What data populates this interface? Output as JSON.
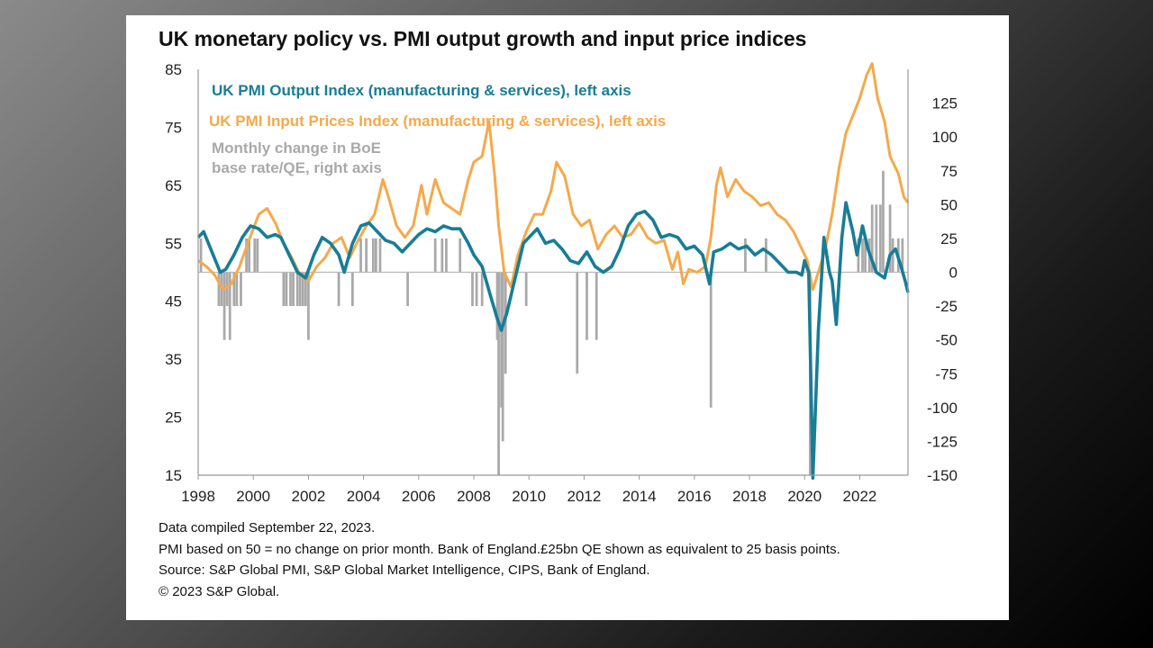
{
  "title": "UK monetary policy vs. PMI output growth and input price indices",
  "notes": [
    "Data compiled September 22, 2023.",
    "PMI based on 50 = no change on prior month. Bank of England.£25bn QE shown as equivalent to 25 basis points.",
    "Source: S&P Global PMI, S&P Global Market Intelligence, CIPS, Bank of England.",
    "© 2023 S&P Global."
  ],
  "colors": {
    "output": "#187d96",
    "input": "#f5a94a",
    "boe": "#a9a9a9",
    "zero_line": "#b8b8b8",
    "axis": "#999999"
  },
  "chart_data": {
    "type": "line",
    "x_range": [
      1998,
      2023.75
    ],
    "x_ticks": [
      "1998",
      "2000",
      "2002",
      "2004",
      "2006",
      "2008",
      "2010",
      "2012",
      "2014",
      "2016",
      "2018",
      "2020",
      "2022"
    ],
    "left_axis": {
      "range": [
        15,
        85
      ],
      "ticks": [
        "85",
        "75",
        "65",
        "55",
        "45",
        "35",
        "25",
        "15"
      ]
    },
    "right_axis": {
      "range": [
        -150,
        150
      ],
      "ticks": [
        "125",
        "100",
        "75",
        "50",
        "25",
        "0",
        "-25",
        "-50",
        "-75",
        "-100",
        "-125",
        "-150"
      ]
    },
    "series": [
      {
        "name": "UK PMI Output Index (manufacturing & services), left axis",
        "axis": "left",
        "kind": "line",
        "points": [
          [
            1998.0,
            56
          ],
          [
            1998.2,
            57
          ],
          [
            1998.5,
            53.5
          ],
          [
            1998.8,
            50
          ],
          [
            1999.0,
            50.5
          ],
          [
            1999.3,
            53
          ],
          [
            1999.6,
            56
          ],
          [
            1999.9,
            58
          ],
          [
            2000.2,
            57.5
          ],
          [
            2000.5,
            56
          ],
          [
            2000.8,
            56.5
          ],
          [
            2001.0,
            56
          ],
          [
            2001.3,
            53
          ],
          [
            2001.6,
            50
          ],
          [
            2001.9,
            49
          ],
          [
            2002.2,
            53
          ],
          [
            2002.5,
            56
          ],
          [
            2002.8,
            55
          ],
          [
            2003.1,
            53
          ],
          [
            2003.3,
            50
          ],
          [
            2003.6,
            55
          ],
          [
            2003.9,
            58
          ],
          [
            2004.2,
            58.5
          ],
          [
            2004.5,
            57
          ],
          [
            2004.8,
            55.5
          ],
          [
            2005.1,
            55
          ],
          [
            2005.4,
            53.5
          ],
          [
            2005.7,
            55
          ],
          [
            2006.0,
            56.5
          ],
          [
            2006.3,
            57.5
          ],
          [
            2006.6,
            57
          ],
          [
            2006.9,
            58
          ],
          [
            2007.2,
            57.5
          ],
          [
            2007.5,
            57.5
          ],
          [
            2007.8,
            55
          ],
          [
            2008.0,
            53
          ],
          [
            2008.3,
            51
          ],
          [
            2008.6,
            46
          ],
          [
            2008.85,
            42
          ],
          [
            2009.0,
            40
          ],
          [
            2009.2,
            43
          ],
          [
            2009.5,
            49
          ],
          [
            2009.8,
            55
          ],
          [
            2010.0,
            56
          ],
          [
            2010.3,
            57.5
          ],
          [
            2010.6,
            55
          ],
          [
            2010.9,
            55.5
          ],
          [
            2011.2,
            54
          ],
          [
            2011.5,
            52
          ],
          [
            2011.8,
            51.5
          ],
          [
            2012.1,
            53.5
          ],
          [
            2012.4,
            51
          ],
          [
            2012.7,
            50
          ],
          [
            2013.0,
            51
          ],
          [
            2013.3,
            54
          ],
          [
            2013.6,
            58
          ],
          [
            2013.9,
            60
          ],
          [
            2014.2,
            60.5
          ],
          [
            2014.5,
            59
          ],
          [
            2014.8,
            56
          ],
          [
            2015.1,
            56.5
          ],
          [
            2015.4,
            56
          ],
          [
            2015.7,
            54
          ],
          [
            2016.0,
            54.5
          ],
          [
            2016.3,
            53
          ],
          [
            2016.55,
            48
          ],
          [
            2016.7,
            53.5
          ],
          [
            2017.0,
            54
          ],
          [
            2017.3,
            55
          ],
          [
            2017.6,
            54
          ],
          [
            2017.9,
            54.5
          ],
          [
            2018.2,
            53
          ],
          [
            2018.5,
            54
          ],
          [
            2018.8,
            53
          ],
          [
            2019.1,
            51.5
          ],
          [
            2019.4,
            50
          ],
          [
            2019.7,
            50
          ],
          [
            2019.9,
            49.5
          ],
          [
            2020.0,
            52
          ],
          [
            2020.15,
            50
          ],
          [
            2020.3,
            14.5
          ],
          [
            2020.5,
            40
          ],
          [
            2020.7,
            56
          ],
          [
            2020.9,
            50
          ],
          [
            2021.0,
            48.5
          ],
          [
            2021.15,
            41
          ],
          [
            2021.35,
            56
          ],
          [
            2021.5,
            62
          ],
          [
            2021.75,
            57
          ],
          [
            2021.9,
            53
          ],
          [
            2022.1,
            58
          ],
          [
            2022.3,
            54
          ],
          [
            2022.6,
            50
          ],
          [
            2022.9,
            49
          ],
          [
            2023.1,
            53
          ],
          [
            2023.3,
            54
          ],
          [
            2023.5,
            51
          ],
          [
            2023.65,
            48.5
          ],
          [
            2023.75,
            46.5
          ]
        ]
      },
      {
        "name": "UK PMI Input Prices Index (manufacturing & services), left axis",
        "axis": "left",
        "kind": "line",
        "points": [
          [
            1998.0,
            52
          ],
          [
            1998.3,
            51
          ],
          [
            1998.6,
            49.5
          ],
          [
            1998.9,
            47
          ],
          [
            1999.2,
            48
          ],
          [
            1999.5,
            51
          ],
          [
            1999.8,
            55
          ],
          [
            2000.2,
            60
          ],
          [
            2000.5,
            61
          ],
          [
            2000.8,
            58.5
          ],
          [
            2001.1,
            55
          ],
          [
            2001.4,
            52.5
          ],
          [
            2001.7,
            49.5
          ],
          [
            2002.0,
            48.5
          ],
          [
            2002.3,
            51
          ],
          [
            2002.6,
            52.5
          ],
          [
            2002.9,
            55
          ],
          [
            2003.2,
            56
          ],
          [
            2003.5,
            52.5
          ],
          [
            2003.8,
            55.5
          ],
          [
            2004.1,
            58
          ],
          [
            2004.4,
            60
          ],
          [
            2004.7,
            66
          ],
          [
            2004.9,
            63
          ],
          [
            2005.2,
            58
          ],
          [
            2005.5,
            56
          ],
          [
            2005.8,
            58
          ],
          [
            2006.1,
            65
          ],
          [
            2006.3,
            60
          ],
          [
            2006.6,
            66
          ],
          [
            2006.9,
            62
          ],
          [
            2007.2,
            61
          ],
          [
            2007.5,
            60
          ],
          [
            2007.8,
            66
          ],
          [
            2008.0,
            69
          ],
          [
            2008.3,
            70
          ],
          [
            2008.55,
            76
          ],
          [
            2008.75,
            67
          ],
          [
            2008.9,
            58
          ],
          [
            2009.1,
            50
          ],
          [
            2009.35,
            47.5
          ],
          [
            2009.6,
            53
          ],
          [
            2009.9,
            57
          ],
          [
            2010.2,
            60
          ],
          [
            2010.5,
            60
          ],
          [
            2010.8,
            64
          ],
          [
            2011.0,
            69
          ],
          [
            2011.3,
            66.5
          ],
          [
            2011.6,
            60
          ],
          [
            2011.9,
            58
          ],
          [
            2012.2,
            59
          ],
          [
            2012.5,
            54
          ],
          [
            2012.8,
            56.5
          ],
          [
            2013.1,
            58
          ],
          [
            2013.4,
            56
          ],
          [
            2013.7,
            56.5
          ],
          [
            2014.0,
            58.5
          ],
          [
            2014.3,
            56
          ],
          [
            2014.6,
            55
          ],
          [
            2014.9,
            55.5
          ],
          [
            2015.2,
            50.5
          ],
          [
            2015.4,
            53.5
          ],
          [
            2015.6,
            48
          ],
          [
            2015.8,
            50.5
          ],
          [
            2016.1,
            50
          ],
          [
            2016.4,
            51
          ],
          [
            2016.6,
            56
          ],
          [
            2016.8,
            65
          ],
          [
            2016.95,
            68
          ],
          [
            2017.2,
            63
          ],
          [
            2017.5,
            66
          ],
          [
            2017.8,
            64
          ],
          [
            2018.1,
            63
          ],
          [
            2018.4,
            61.5
          ],
          [
            2018.7,
            62
          ],
          [
            2019.0,
            60
          ],
          [
            2019.3,
            59
          ],
          [
            2019.6,
            57
          ],
          [
            2019.9,
            54
          ],
          [
            2020.1,
            52
          ],
          [
            2020.3,
            47
          ],
          [
            2020.5,
            50
          ],
          [
            2020.75,
            54
          ],
          [
            2021.0,
            60
          ],
          [
            2021.25,
            68
          ],
          [
            2021.5,
            74
          ],
          [
            2021.75,
            77
          ],
          [
            2022.0,
            80
          ],
          [
            2022.25,
            84
          ],
          [
            2022.45,
            86
          ],
          [
            2022.65,
            80
          ],
          [
            2022.9,
            76
          ],
          [
            2023.1,
            70
          ],
          [
            2023.4,
            67
          ],
          [
            2023.6,
            63
          ],
          [
            2023.75,
            62
          ]
        ]
      },
      {
        "name": "Monthly change in BoE base rate/QE, right axis",
        "axis": "right",
        "kind": "bar",
        "bar_width": 0.09,
        "bars": [
          [
            1998.1,
            25
          ],
          [
            1998.75,
            -25
          ],
          [
            1998.85,
            -25
          ],
          [
            1998.95,
            -50
          ],
          [
            1999.05,
            -25
          ],
          [
            1999.15,
            -50
          ],
          [
            1999.3,
            -25
          ],
          [
            1999.4,
            -25
          ],
          [
            1999.55,
            -25
          ],
          [
            1999.75,
            25
          ],
          [
            1999.85,
            25
          ],
          [
            2000.05,
            25
          ],
          [
            2000.15,
            25
          ],
          [
            2001.1,
            -25
          ],
          [
            2001.2,
            -25
          ],
          [
            2001.35,
            -25
          ],
          [
            2001.45,
            -25
          ],
          [
            2001.6,
            -25
          ],
          [
            2001.7,
            -25
          ],
          [
            2001.8,
            -25
          ],
          [
            2001.9,
            -25
          ],
          [
            2002.0,
            -50
          ],
          [
            2003.1,
            -25
          ],
          [
            2003.6,
            -25
          ],
          [
            2003.9,
            25
          ],
          [
            2004.1,
            25
          ],
          [
            2004.35,
            25
          ],
          [
            2004.45,
            25
          ],
          [
            2004.6,
            25
          ],
          [
            2005.6,
            -25
          ],
          [
            2006.6,
            25
          ],
          [
            2006.85,
            25
          ],
          [
            2007.0,
            25
          ],
          [
            2007.5,
            25
          ],
          [
            2007.95,
            -25
          ],
          [
            2008.1,
            -25
          ],
          [
            2008.3,
            -25
          ],
          [
            2008.85,
            -50
          ],
          [
            2008.9,
            -150
          ],
          [
            2009.0,
            -100
          ],
          [
            2009.05,
            -125
          ],
          [
            2009.15,
            -75
          ],
          [
            2009.9,
            -25
          ],
          [
            2011.75,
            -75
          ],
          [
            2012.1,
            -50
          ],
          [
            2012.45,
            -50
          ],
          [
            2016.6,
            -100
          ],
          [
            2017.85,
            25
          ],
          [
            2018.6,
            25
          ],
          [
            2020.2,
            -150
          ],
          [
            2021.95,
            25
          ],
          [
            2022.1,
            25
          ],
          [
            2022.2,
            25
          ],
          [
            2022.35,
            25
          ],
          [
            2022.45,
            50
          ],
          [
            2022.6,
            50
          ],
          [
            2022.75,
            50
          ],
          [
            2022.85,
            75
          ],
          [
            2023.1,
            50
          ],
          [
            2023.2,
            25
          ],
          [
            2023.4,
            25
          ],
          [
            2023.55,
            25
          ]
        ]
      }
    ],
    "legend_placement": "top-left, inside plot"
  }
}
